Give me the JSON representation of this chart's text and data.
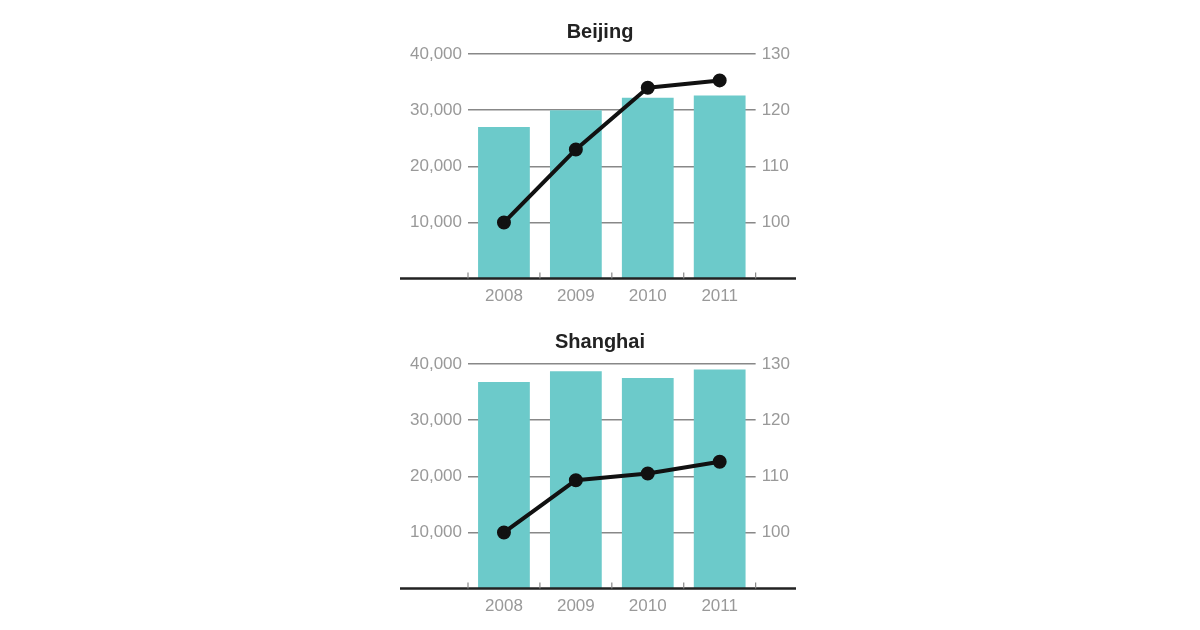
{
  "chart_data": [
    {
      "type": "bar",
      "title": "Beijing",
      "categories": [
        "2008",
        "2009",
        "2010",
        "2011"
      ],
      "series": [
        {
          "color": "#6ccaca",
          "values": [
            27000,
            30000,
            32200,
            32600
          ]
        },
        {
          "type": "line",
          "axis": "y2",
          "color": "#111111",
          "values": [
            100,
            113,
            124,
            125.3
          ]
        }
      ],
      "ylim": [
        0,
        40000
      ],
      "yticks": [
        {
          "value": 10000,
          "label": "10,000"
        },
        {
          "value": 20000,
          "label": "20,000"
        },
        {
          "value": 30000,
          "label": "30,000"
        },
        {
          "value": 40000,
          "label": "40,000"
        }
      ],
      "y2lim": [
        90,
        130
      ],
      "y2ticks": [
        100,
        110,
        120,
        130
      ],
      "grid": "y",
      "marker": "circle"
    },
    {
      "type": "bar",
      "title": "Shanghai",
      "categories": [
        "2008",
        "2009",
        "2010",
        "2011"
      ],
      "series": [
        {
          "color": "#6ccaca",
          "values": [
            36800,
            38700,
            37500,
            39000
          ]
        },
        {
          "type": "line",
          "axis": "y2",
          "color": "#111111",
          "values": [
            100,
            109.3,
            110.5,
            112.6
          ]
        }
      ],
      "ylim": [
        0,
        40000
      ],
      "yticks": [
        {
          "value": 10000,
          "label": "10,000"
        },
        {
          "value": 20000,
          "label": "20,000"
        },
        {
          "value": 30000,
          "label": "30,000"
        },
        {
          "value": 40000,
          "label": "40,000"
        }
      ],
      "y2lim": [
        90,
        130
      ],
      "y2ticks": [
        100,
        110,
        120,
        130
      ],
      "grid": "y",
      "marker": "circle"
    }
  ]
}
